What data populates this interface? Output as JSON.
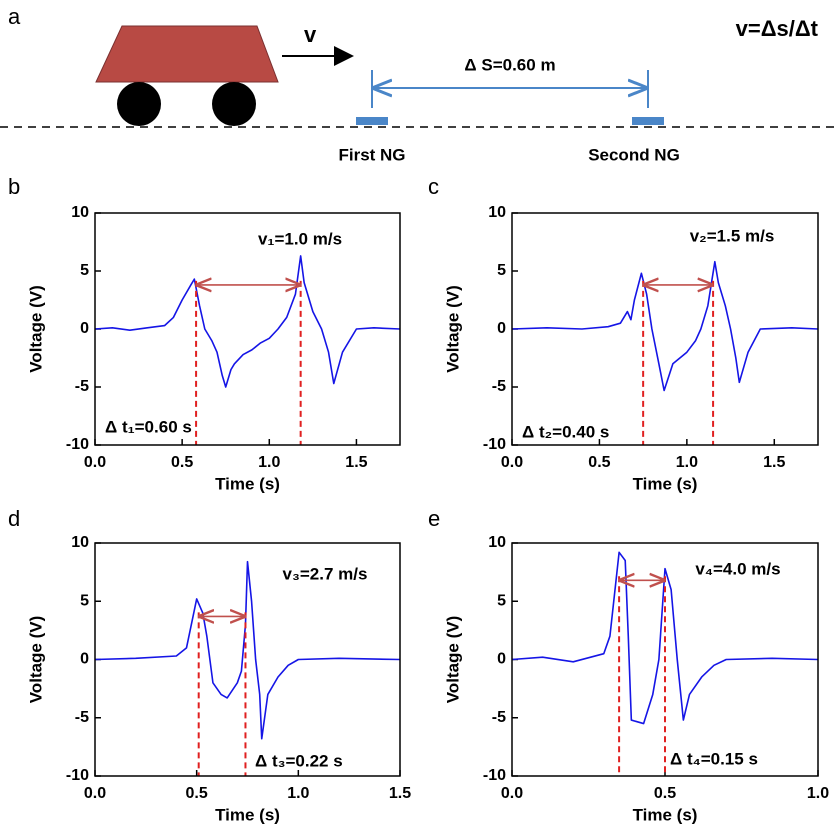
{
  "diagram": {
    "panel_label": "a",
    "velocity_label": "v",
    "formula": "v=Δs/Δt",
    "distance_label": "Δ S=0.60 m",
    "first_label": "First NG",
    "second_label": "Second NG"
  },
  "chart_data": [
    {
      "type": "line",
      "panel_label": "b",
      "xlabel": "Time (s)",
      "ylabel": "Voltage (V)",
      "color": "#1515e6",
      "xlim": [
        0,
        1.75
      ],
      "ylim": [
        -10,
        10
      ],
      "xticks": [
        {
          "value": 0,
          "label": "0.0"
        },
        0.5,
        {
          "value": 1,
          "label": "1.0"
        },
        1.5
      ],
      "yticks": [
        -10,
        -5,
        0,
        5,
        10
      ],
      "x": [
        0,
        0.1,
        0.2,
        0.3,
        0.4,
        0.45,
        0.5,
        0.55,
        0.57,
        0.6,
        0.63,
        0.67,
        0.7,
        0.73,
        0.75,
        0.78,
        0.8,
        0.85,
        0.9,
        0.95,
        1.0,
        1.05,
        1.1,
        1.15,
        1.18,
        1.2,
        1.25,
        1.3,
        1.34,
        1.37,
        1.42,
        1.5,
        1.6,
        1.75
      ],
      "values": [
        0,
        0.1,
        -0.1,
        0.1,
        0.3,
        1,
        2.5,
        3.8,
        4.3,
        2,
        0,
        -1,
        -2,
        -4,
        -5,
        -3.5,
        -3,
        -2.2,
        -1.8,
        -1.2,
        -0.8,
        0,
        1,
        3,
        6.3,
        4,
        1.5,
        0,
        -2,
        -4.7,
        -2,
        0,
        0.1,
        0
      ],
      "speed_label": "v₁=1.0 m/s",
      "interval_label": "Δ t₁=0.60 s",
      "markers": [
        0.58,
        1.18
      ],
      "marker_color": "#e02020",
      "arrow_y": 3.8
    },
    {
      "type": "line",
      "panel_label": "c",
      "xlabel": "Time (s)",
      "ylabel": "Voltage (V)",
      "color": "#1515e6",
      "xlim": [
        0,
        1.75
      ],
      "ylim": [
        -10,
        10
      ],
      "xticks": [
        {
          "value": 0,
          "label": "0.0"
        },
        0.5,
        {
          "value": 1,
          "label": "1.0"
        },
        1.5
      ],
      "yticks": [
        -10,
        -5,
        0,
        5,
        10
      ],
      "x": [
        0,
        0.2,
        0.4,
        0.55,
        0.62,
        0.66,
        0.68,
        0.7,
        0.74,
        0.77,
        0.8,
        0.84,
        0.87,
        0.92,
        1.0,
        1.05,
        1.08,
        1.12,
        1.16,
        1.18,
        1.22,
        1.25,
        1.28,
        1.3,
        1.35,
        1.42,
        1.6,
        1.75
      ],
      "values": [
        0,
        0.1,
        0,
        0.2,
        0.5,
        1.5,
        0.8,
        2.5,
        4.8,
        3,
        0,
        -3,
        -5.3,
        -3,
        -2,
        -1,
        0,
        2,
        5.8,
        4,
        2,
        0,
        -2.5,
        -4.6,
        -2,
        0,
        0.1,
        0
      ],
      "speed_label": "v₂=1.5 m/s",
      "interval_label": "Δ t₂=0.40 s",
      "markers": [
        0.75,
        1.15
      ],
      "marker_color": "#e02020",
      "arrow_y": 3.8
    },
    {
      "type": "line",
      "panel_label": "d",
      "xlabel": "Time (s)",
      "ylabel": "Voltage (V)",
      "color": "#1515e6",
      "xlim": [
        0,
        1.5
      ],
      "ylim": [
        -10,
        10
      ],
      "xticks": [
        {
          "value": 0,
          "label": "0.0"
        },
        0.5,
        {
          "value": 1,
          "label": "1.0"
        },
        1.5
      ],
      "yticks": [
        -10,
        -5,
        0,
        5,
        10
      ],
      "x": [
        0,
        0.2,
        0.4,
        0.45,
        0.5,
        0.53,
        0.55,
        0.58,
        0.62,
        0.65,
        0.7,
        0.72,
        0.74,
        0.75,
        0.77,
        0.79,
        0.81,
        0.82,
        0.85,
        0.9,
        0.95,
        1.0,
        1.2,
        1.5
      ],
      "values": [
        0,
        0.1,
        0.3,
        1,
        5.2,
        4,
        2,
        -2,
        -3,
        -3.3,
        -2,
        -1,
        3,
        8.4,
        5,
        0,
        -3,
        -6.8,
        -3,
        -1.5,
        -0.5,
        0,
        0.1,
        0
      ],
      "speed_label": "v₃=2.7 m/s",
      "interval_label": "Δ t₃=0.22 s",
      "markers": [
        0.51,
        0.74
      ],
      "marker_color": "#e02020",
      "arrow_y": 3.7
    },
    {
      "type": "line",
      "panel_label": "e",
      "xlabel": "Time (s)",
      "ylabel": "Voltage (V)",
      "color": "#1515e6",
      "xlim": [
        0,
        1
      ],
      "ylim": [
        -10,
        10
      ],
      "xticks": [
        {
          "value": 0,
          "label": "0.0"
        },
        0.5,
        {
          "value": 1,
          "label": "1.0"
        }
      ],
      "yticks": [
        -10,
        -5,
        0,
        5,
        10
      ],
      "x": [
        0,
        0.1,
        0.2,
        0.3,
        0.32,
        0.35,
        0.37,
        0.38,
        0.39,
        0.43,
        0.46,
        0.48,
        0.5,
        0.52,
        0.54,
        0.56,
        0.58,
        0.62,
        0.66,
        0.7,
        0.85,
        1.0
      ],
      "values": [
        0,
        0.2,
        -0.2,
        0.5,
        2,
        9.2,
        8.5,
        2,
        -5.2,
        -5.5,
        -3,
        0,
        7.8,
        6,
        0,
        -5.2,
        -3,
        -1.5,
        -0.5,
        0,
        0.1,
        0
      ],
      "speed_label": "v₄=4.0 m/s",
      "interval_label": "Δ t₄=0.15 s",
      "markers": [
        0.35,
        0.5
      ],
      "marker_color": "#e02020",
      "arrow_y": 6.8
    }
  ]
}
